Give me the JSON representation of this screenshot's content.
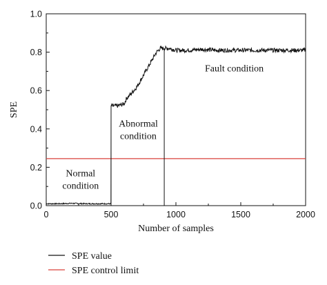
{
  "chart_data": {
    "type": "line",
    "xlabel": "Number of samples",
    "ylabel": "SPE",
    "xlim": [
      0,
      2000
    ],
    "ylim": [
      0,
      1.0
    ],
    "x_ticks": [
      0,
      500,
      1000,
      1500,
      2000
    ],
    "y_ticks": [
      0.0,
      0.2,
      0.4,
      0.6,
      0.8,
      1.0
    ],
    "x_tick_labels": [
      "0",
      "500",
      "1000",
      "1500",
      "2000"
    ],
    "y_tick_labels": [
      "0.0",
      "0.2",
      "0.4",
      "0.6",
      "0.8",
      "1.0"
    ],
    "grid": false,
    "legend_position": "bottom-left, below plot",
    "series": [
      {
        "name": "SPE value",
        "color": "#111111",
        "x": [
          0,
          100,
          200,
          300,
          400,
          499,
          500,
          501,
          550,
          600,
          620,
          650,
          700,
          750,
          800,
          850,
          880,
          900,
          950,
          1000,
          1100,
          1200,
          1300,
          1400,
          1500,
          1600,
          1700,
          1800,
          1900,
          2000
        ],
        "values": [
          0.01,
          0.01,
          0.012,
          0.01,
          0.01,
          0.01,
          0.52,
          0.52,
          0.52,
          0.53,
          0.56,
          0.58,
          0.62,
          0.68,
          0.74,
          0.8,
          0.82,
          0.82,
          0.82,
          0.81,
          0.81,
          0.815,
          0.81,
          0.81,
          0.81,
          0.81,
          0.81,
          0.81,
          0.81,
          0.81
        ]
      },
      {
        "name": "SPE control limit",
        "color": "#d9403a",
        "x": [
          0,
          2000
        ],
        "values": [
          0.245,
          0.245
        ]
      }
    ],
    "vertical_markers": [
      {
        "x": 500,
        "y_from": 0.0,
        "y_to": 0.52
      },
      {
        "x": 910,
        "y_from": 0.0,
        "y_to": 0.82
      }
    ],
    "annotations": [
      {
        "lines": [
          "Normal",
          "condition"
        ],
        "x": 265,
        "y": 0.12
      },
      {
        "lines": [
          "Abnormal",
          "condition"
        ],
        "x": 710,
        "y": 0.38
      },
      {
        "lines": [
          "Fault condition"
        ],
        "x": 1450,
        "y": 0.7
      }
    ]
  }
}
